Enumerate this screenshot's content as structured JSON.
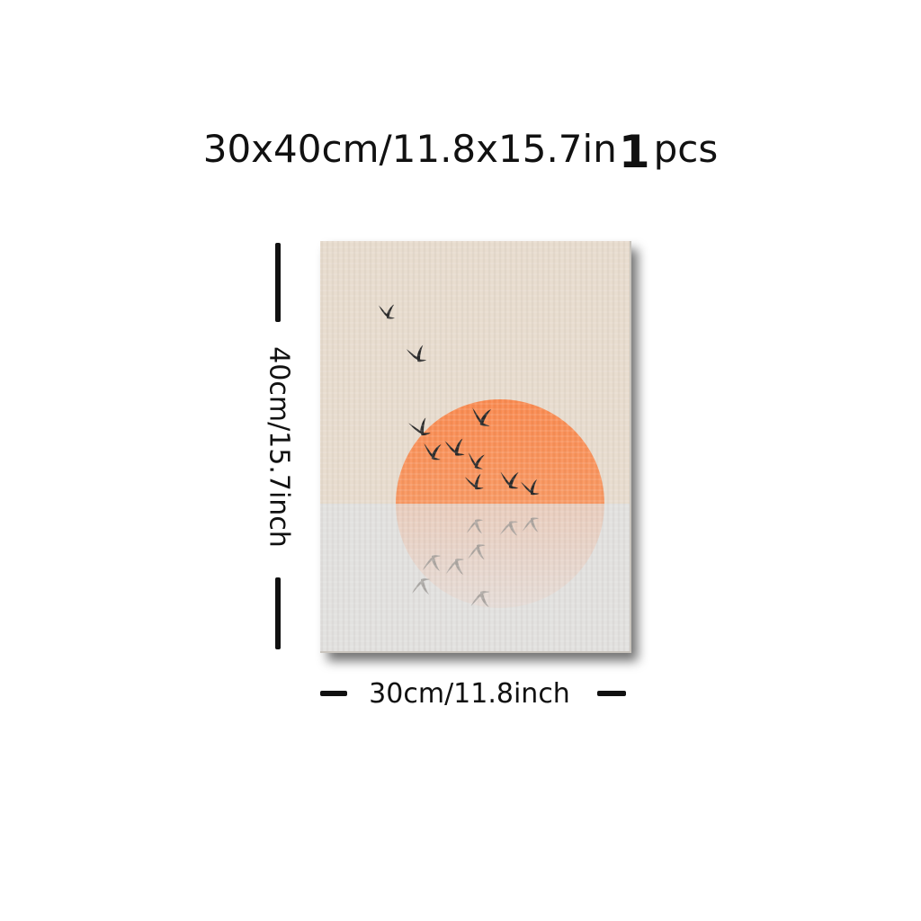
{
  "headline": {
    "size_text": "30x40cm/11.8x15.7in",
    "quantity": "1",
    "quantity_unit": "pcs"
  },
  "dimensions": {
    "height_label": "40cm/15.7inch",
    "width_label": "30cm/11.8inch"
  },
  "artwork": {
    "subject": "orange sun over water with flock of birds and reflection",
    "colors": {
      "sky": "#e7dbcd",
      "water": "#e1e0de",
      "sun": "#f79a63",
      "sun_reflection": "#efc3a7",
      "birds": "#2a2a2a",
      "bird_reflection": "#9e9a96",
      "shadow": "#222222"
    }
  }
}
